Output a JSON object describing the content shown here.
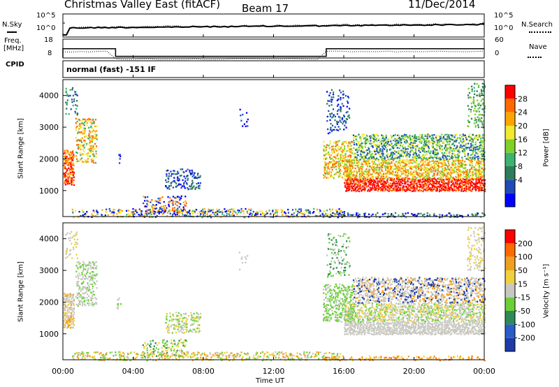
{
  "header": {
    "station": "Christmas Valley East (fitACF)",
    "beam": "Beam 17",
    "date": "11/Dec/2014"
  },
  "noise_panel": {
    "left_label": "N.Sky",
    "right_label": "N.Search",
    "left_ticks": [
      "10^5",
      "10^0"
    ],
    "right_ticks": [
      "10^5",
      "10^0"
    ]
  },
  "freq_panel": {
    "left_label_1": "Freq.",
    "left_label_2": "[MHz]",
    "right_label": "Nave",
    "left_ticks": [
      "18",
      "8"
    ],
    "right_ticks": [
      "60",
      "0"
    ],
    "freq_steps": [
      {
        "from": "00:00",
        "to": "03:00",
        "mhz": 14.0
      },
      {
        "from": "03:00",
        "to": "15:00",
        "mhz": 10.0
      },
      {
        "from": "15:00",
        "to": "24:00",
        "mhz": 14.0
      }
    ]
  },
  "cpid_panel": {
    "label": "CPID",
    "value": "normal (fast) -151 IF"
  },
  "chart_data": [
    {
      "type": "heatmap",
      "name": "power",
      "ylabel": "Slant Range [km]",
      "yticks": [
        "4000",
        "3000",
        "2000",
        "1000"
      ],
      "ytick_values": [
        4000,
        3000,
        2000,
        1000
      ],
      "ylim": [
        180,
        4500
      ],
      "xlim_hours": [
        0,
        24
      ],
      "colorbar_label": "Power [dB]",
      "colorbar_ticks": [
        "28",
        "24",
        "20",
        "16",
        "12",
        "8",
        "4"
      ],
      "colorbar_colors": [
        "#0000ff",
        "#1f4ab8",
        "#2e7d5a",
        "#3cb371",
        "#7fd02a",
        "#f2e830",
        "#ffa500",
        "#ff6a00",
        "#ff0000"
      ]
    },
    {
      "type": "heatmap",
      "name": "velocity",
      "ylabel": "Slant Range [km]",
      "yticks": [
        "4000",
        "3000",
        "2000",
        "1000"
      ],
      "ytick_values": [
        4000,
        3000,
        2000,
        1000
      ],
      "ylim": [
        180,
        4500
      ],
      "xlim_hours": [
        0,
        24
      ],
      "colorbar_label": "Velocity [m s⁻¹]",
      "colorbar_ticks": [
        "200",
        "100",
        "50",
        "15",
        "-15",
        "-50",
        "-100",
        "-200"
      ],
      "colorbar_colors": [
        "#1e3ba8",
        "#2a5ec6",
        "#2e8b57",
        "#6ccf3a",
        "#c8c8c0",
        "#f0d040",
        "#f0a020",
        "#ff6a00",
        "#ff0000"
      ]
    }
  ],
  "time_axis": {
    "label": "Time UT",
    "ticks": [
      "00:00",
      "04:00",
      "08:00",
      "12:00",
      "16:00",
      "20:00",
      "00:00"
    ],
    "tick_hours": [
      0,
      4,
      8,
      12,
      16,
      20,
      24
    ]
  }
}
